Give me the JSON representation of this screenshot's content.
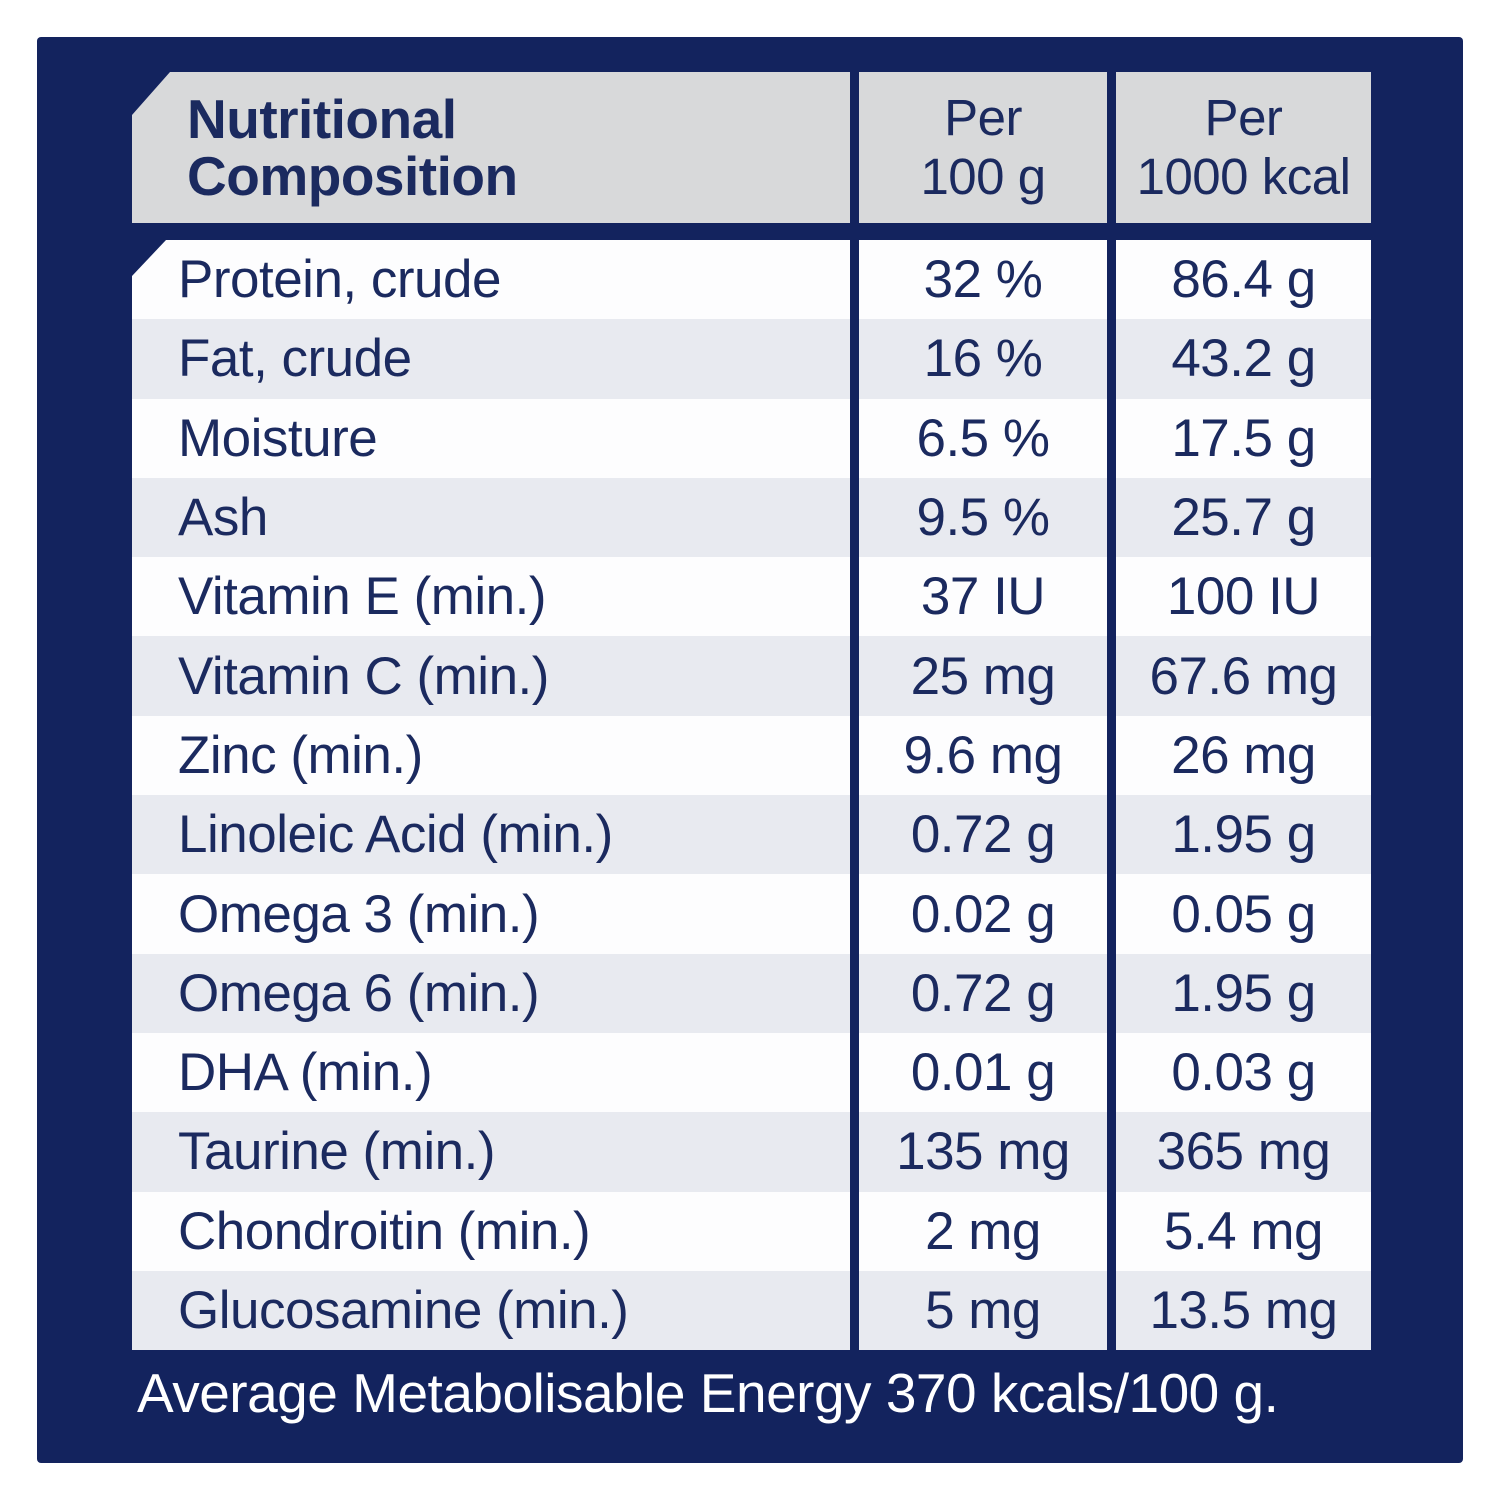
{
  "colors": {
    "page_bg": "#ffffff",
    "navy": "#13235e",
    "header_gray": "#d8d9da",
    "row_white": "#fdfdfe",
    "row_light": "#e8eaf0",
    "text_navy": "#1b2a5f",
    "footer_text": "#ffffff"
  },
  "table": {
    "title": "Nutritional\nComposition",
    "columns": {
      "per_100g": "Per\n100 g",
      "per_1000kcal": "Per\n1000 kcal"
    },
    "rows": [
      {
        "label": "Protein, crude",
        "per_100g": "32 %",
        "per_1000kcal": "86.4 g"
      },
      {
        "label": "Fat, crude",
        "per_100g": "16 %",
        "per_1000kcal": "43.2 g"
      },
      {
        "label": "Moisture",
        "per_100g": "6.5 %",
        "per_1000kcal": "17.5 g"
      },
      {
        "label": "Ash",
        "per_100g": "9.5 %",
        "per_1000kcal": "25.7 g"
      },
      {
        "label": "Vitamin E (min.)",
        "per_100g": "37 IU",
        "per_1000kcal": "100 IU"
      },
      {
        "label": "Vitamin C (min.)",
        "per_100g": "25 mg",
        "per_1000kcal": "67.6 mg"
      },
      {
        "label": "Zinc (min.)",
        "per_100g": "9.6 mg",
        "per_1000kcal": "26 mg"
      },
      {
        "label": "Linoleic Acid (min.)",
        "per_100g": "0.72 g",
        "per_1000kcal": "1.95 g"
      },
      {
        "label": "Omega 3 (min.)",
        "per_100g": "0.02 g",
        "per_1000kcal": "0.05 g"
      },
      {
        "label": "Omega 6 (min.)",
        "per_100g": "0.72 g",
        "per_1000kcal": "1.95 g"
      },
      {
        "label": "DHA (min.)",
        "per_100g": "0.01 g",
        "per_1000kcal": "0.03 g"
      },
      {
        "label": "Taurine (min.)",
        "per_100g": "135 mg",
        "per_1000kcal": "365 mg"
      },
      {
        "label": "Chondroitin (min.)",
        "per_100g": "2 mg",
        "per_1000kcal": "5.4 mg"
      },
      {
        "label": "Glucosamine (min.)",
        "per_100g": "5 mg",
        "per_1000kcal": "13.5 mg"
      }
    ]
  },
  "footer": {
    "text": "Average Metabolisable Energy 370 kcals/100 g."
  }
}
